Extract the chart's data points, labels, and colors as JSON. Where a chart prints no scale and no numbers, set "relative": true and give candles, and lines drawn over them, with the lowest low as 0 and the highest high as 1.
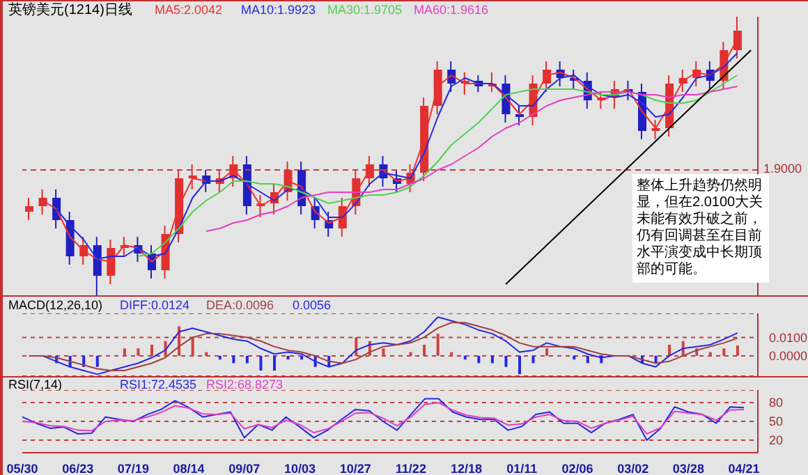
{
  "chart_data": [
    {
      "type": "candlestick",
      "title": "英镑美元(1214)日线",
      "relative": true,
      "legend": "top",
      "tick_labels": false,
      "categories": [
        null,
        null,
        null,
        null,
        null,
        null,
        null,
        null,
        null,
        null,
        null,
        null,
        null,
        null,
        null,
        null,
        null,
        null,
        null,
        null,
        null,
        null,
        null,
        null,
        null,
        null,
        null,
        null,
        null,
        null,
        null,
        null,
        null,
        null,
        null,
        null,
        null,
        null,
        null,
        null,
        null,
        null,
        null,
        null,
        null,
        null,
        null,
        null,
        null,
        null,
        null,
        null,
        null,
        null
      ],
      "ohlc": [
        [
          0.3,
          0.35,
          0.27,
          0.32
        ],
        [
          0.32,
          0.38,
          0.29,
          0.35
        ],
        [
          0.35,
          0.38,
          0.24,
          0.27
        ],
        [
          0.27,
          0.3,
          0.11,
          0.14
        ],
        [
          0.14,
          0.21,
          0.11,
          0.18
        ],
        [
          0.18,
          0.21,
          0.0,
          0.07
        ],
        [
          0.07,
          0.2,
          0.04,
          0.17
        ],
        [
          0.17,
          0.21,
          0.14,
          0.18
        ],
        [
          0.18,
          0.21,
          0.12,
          0.15
        ],
        [
          0.15,
          0.18,
          0.06,
          0.09
        ],
        [
          0.09,
          0.25,
          0.06,
          0.22
        ],
        [
          0.22,
          0.45,
          0.19,
          0.42
        ],
        [
          0.42,
          0.47,
          0.38,
          0.43
        ],
        [
          0.43,
          0.45,
          0.37,
          0.4
        ],
        [
          0.4,
          0.45,
          0.37,
          0.42
        ],
        [
          0.42,
          0.5,
          0.39,
          0.47
        ],
        [
          0.47,
          0.5,
          0.29,
          0.32
        ],
        [
          0.32,
          0.36,
          0.28,
          0.33
        ],
        [
          0.33,
          0.4,
          0.29,
          0.37
        ],
        [
          0.37,
          0.48,
          0.34,
          0.45
        ],
        [
          0.45,
          0.48,
          0.29,
          0.32
        ],
        [
          0.32,
          0.35,
          0.24,
          0.27
        ],
        [
          0.27,
          0.3,
          0.21,
          0.24
        ],
        [
          0.24,
          0.35,
          0.21,
          0.32
        ],
        [
          0.32,
          0.45,
          0.29,
          0.42
        ],
        [
          0.42,
          0.5,
          0.39,
          0.47
        ],
        [
          0.47,
          0.5,
          0.39,
          0.42
        ],
        [
          0.42,
          0.45,
          0.37,
          0.4
        ],
        [
          0.4,
          0.47,
          0.37,
          0.44
        ],
        [
          0.44,
          0.71,
          0.41,
          0.68
        ],
        [
          0.68,
          0.84,
          0.65,
          0.81
        ],
        [
          0.81,
          0.84,
          0.73,
          0.76
        ],
        [
          0.76,
          0.8,
          0.72,
          0.77
        ],
        [
          0.77,
          0.79,
          0.73,
          0.75
        ],
        [
          0.75,
          0.8,
          0.73,
          0.76
        ],
        [
          0.76,
          0.79,
          0.62,
          0.65
        ],
        [
          0.65,
          0.68,
          0.61,
          0.64
        ],
        [
          0.64,
          0.79,
          0.61,
          0.76
        ],
        [
          0.76,
          0.84,
          0.73,
          0.81
        ],
        [
          0.81,
          0.84,
          0.75,
          0.78
        ],
        [
          0.78,
          0.81,
          0.74,
          0.77
        ],
        [
          0.77,
          0.8,
          0.67,
          0.7
        ],
        [
          0.7,
          0.73,
          0.67,
          0.71
        ],
        [
          0.71,
          0.77,
          0.67,
          0.74
        ],
        [
          0.74,
          0.77,
          0.7,
          0.73
        ],
        [
          0.73,
          0.76,
          0.56,
          0.59
        ],
        [
          0.59,
          0.63,
          0.56,
          0.6
        ],
        [
          0.6,
          0.79,
          0.57,
          0.76
        ],
        [
          0.76,
          0.81,
          0.73,
          0.78
        ],
        [
          0.78,
          0.84,
          0.75,
          0.81
        ],
        [
          0.81,
          0.84,
          0.74,
          0.77
        ],
        [
          0.77,
          0.91,
          0.74,
          0.88
        ],
        [
          0.88,
          1.0,
          0.85,
          0.95
        ],
        null
      ],
      "colors": [
        "#e03030",
        "#e03030",
        "#2020c0",
        "#2020c0",
        "#e03030",
        "#2020c0",
        "#e03030",
        "#e03030",
        "#2020c0",
        "#2020c0",
        "#e03030",
        "#e03030",
        "#e03030",
        "#2020c0",
        "#e03030",
        "#e03030",
        "#2020c0",
        "#e03030",
        "#e03030",
        "#e03030",
        "#2020c0",
        "#2020c0",
        "#2020c0",
        "#e03030",
        "#e03030",
        "#e03030",
        "#2020c0",
        "#2020c0",
        "#e03030",
        "#e03030",
        "#e03030",
        "#2020c0",
        "#e03030",
        "#2020c0",
        "#e03030",
        "#2020c0",
        "#2020c0",
        "#e03030",
        "#e03030",
        "#2020c0",
        "#2020c0",
        "#2020c0",
        "#e03030",
        "#e03030",
        "#2020c0",
        "#2020c0",
        "#e03030",
        "#e03030",
        "#e03030",
        "#e03030",
        "#2020c0",
        "#e03030",
        "#e03030",
        null
      ],
      "series": [
        {
          "name": "MA5:2.0042",
          "type": "line",
          "color": "#f03030",
          "values": [
            null,
            0.34,
            0.31,
            0.21,
            0.16,
            0.13,
            0.12,
            0.18,
            0.17,
            0.12,
            0.16,
            0.32,
            0.42,
            0.41,
            0.41,
            0.45,
            0.4,
            0.32,
            0.35,
            0.41,
            0.39,
            0.3,
            0.26,
            0.28,
            0.37,
            0.45,
            0.45,
            0.41,
            0.42,
            0.56,
            0.75,
            0.79,
            0.76,
            0.76,
            0.76,
            0.71,
            0.65,
            0.7,
            0.79,
            0.8,
            0.78,
            0.74,
            0.7,
            0.72,
            0.74,
            0.66,
            0.6,
            0.68,
            0.77,
            0.8,
            0.79,
            0.83,
            0.92,
            null
          ]
        },
        {
          "name": "MA10:1.9923",
          "type": "line",
          "color": "#2828e0",
          "values": [
            null,
            null,
            0.31,
            0.25,
            0.2,
            0.13,
            0.14,
            0.14,
            0.17,
            0.14,
            0.15,
            0.24,
            0.35,
            0.41,
            0.41,
            0.43,
            0.4,
            0.37,
            0.34,
            0.38,
            0.38,
            0.35,
            0.28,
            0.28,
            0.33,
            0.4,
            0.44,
            0.43,
            0.42,
            0.51,
            0.64,
            0.75,
            0.78,
            0.76,
            0.76,
            0.72,
            0.68,
            0.68,
            0.74,
            0.78,
            0.79,
            0.75,
            0.72,
            0.71,
            0.72,
            0.69,
            0.64,
            0.65,
            0.71,
            0.78,
            0.79,
            0.82,
            0.87,
            null
          ]
        },
        {
          "name": "MA30:1.9705",
          "type": "line",
          "color": "#50d050",
          "values": [
            null,
            null,
            null,
            null,
            null,
            null,
            null,
            null,
            0.14,
            0.15,
            0.19,
            0.24,
            0.3,
            0.34,
            0.37,
            0.41,
            0.41,
            0.4,
            0.4,
            0.39,
            0.37,
            0.35,
            0.33,
            0.34,
            0.35,
            0.36,
            0.36,
            0.37,
            0.39,
            0.43,
            0.48,
            0.54,
            0.58,
            0.62,
            0.67,
            0.72,
            0.73,
            0.74,
            0.74,
            0.74,
            0.74,
            0.73,
            0.72,
            0.72,
            0.73,
            0.72,
            0.7,
            0.69,
            0.69,
            0.7,
            0.73,
            0.76,
            0.79,
            null
          ]
        },
        {
          "name": "MA60:1.9616",
          "type": "line",
          "color": "#e040c0",
          "values": [
            null,
            null,
            null,
            null,
            null,
            null,
            null,
            null,
            null,
            null,
            null,
            null,
            null,
            0.23,
            0.24,
            0.26,
            0.27,
            0.29,
            0.3,
            0.32,
            0.35,
            0.36,
            0.37,
            0.37,
            0.37,
            0.37,
            0.38,
            0.38,
            0.4,
            0.42,
            0.45,
            0.47,
            0.5,
            0.53,
            0.57,
            0.6,
            0.62,
            0.65,
            0.68,
            0.7,
            0.71,
            0.72,
            0.73,
            0.73,
            0.73,
            0.72,
            0.72,
            0.71,
            0.72,
            0.72,
            0.73,
            0.74,
            0.75,
            null
          ]
        },
        {
          "type": "line",
          "color": "#000000",
          "values": [
            null,
            null,
            null,
            null,
            null,
            null,
            null,
            null,
            null,
            null,
            null,
            null,
            null,
            null,
            null,
            null,
            null,
            null,
            null,
            null,
            null,
            null,
            null,
            null,
            null,
            null,
            null,
            null,
            null,
            null,
            null,
            null,
            null,
            null,
            null,
            0.04,
            null,
            null,
            null,
            null,
            null,
            null,
            null,
            null,
            null,
            null,
            null,
            null,
            null,
            null,
            null,
            null,
            null,
            0.88
          ]
        }
      ],
      "ref_lines": [
        {
          "axis": "y",
          "value": 0.45,
          "color": "#c04040",
          "line_style": "dashed"
        }
      ],
      "annotations": [
        "1.9000",
        "整体上升趋势仍然明显，但在2.0100大关未能有效升破之前，仍有回调甚至在目前水平演变成中长期顶部的可能。"
      ]
    },
    {
      "type": "line",
      "title": "MACD(12,26,10)",
      "legend": "top left",
      "tick_labels": "y",
      "grid": "y",
      "categories": [
        null,
        null,
        null,
        null,
        null,
        null,
        null,
        null,
        null,
        null,
        null,
        null,
        null,
        null,
        null,
        null,
        null,
        null,
        null,
        null,
        null,
        null,
        null,
        null,
        null,
        null,
        null,
        null,
        null,
        null,
        null,
        null,
        null,
        null,
        null,
        null,
        null,
        null,
        null,
        null,
        null,
        null,
        null,
        null,
        null,
        null,
        null,
        null,
        null,
        null,
        null,
        null,
        null,
        null
      ],
      "ylim": [
        -0.011,
        0.023
      ],
      "yticks": [
        {
          "value": 0,
          "label": "0.0000"
        },
        {
          "value": 0.01,
          "label": "0.0100"
        }
      ],
      "series": [
        {
          "name": "DIFF:0.0124",
          "type": "line",
          "color": "#2828e0",
          "values": [
            0,
            0,
            -0.003,
            -0.006,
            -0.008,
            -0.01,
            -0.008,
            -0.006,
            -0.004,
            -0.001,
            0.003,
            0.013,
            0.015,
            0.013,
            0.011,
            0.009,
            0.008,
            0.004,
            0.001,
            0.002,
            0.001,
            -0.003,
            -0.006,
            -0.004,
            0.003,
            0.006,
            0.007,
            0.006,
            0.008,
            0.013,
            0.021,
            0.019,
            0.017,
            0.014,
            0.012,
            0.008,
            0.002,
            0.003,
            0.007,
            0.005,
            0.004,
            0.001,
            -0.001,
            0,
            0,
            -0.004,
            -0.006,
            0,
            0.004,
            0.005,
            0.006,
            0.009,
            0.0124,
            null
          ]
        },
        {
          "name": "DEA:0.0096",
          "type": "line",
          "color": "#a04040",
          "values": [
            0,
            0,
            -0.001,
            -0.003,
            -0.005,
            -0.007,
            -0.008,
            -0.008,
            -0.006,
            -0.004,
            -0.001,
            0.005,
            0.01,
            0.012,
            0.012,
            0.011,
            0.01,
            0.008,
            0.005,
            0.003,
            0.002,
            0,
            -0.003,
            -0.004,
            -0.002,
            0.002,
            0.005,
            0.006,
            0.007,
            0.01,
            0.015,
            0.018,
            0.018,
            0.016,
            0.014,
            0.011,
            0.007,
            0.005,
            0.005,
            0.005,
            0.005,
            0.003,
            0.001,
            0,
            0,
            -0.002,
            -0.004,
            -0.003,
            0,
            0.003,
            0.005,
            0.007,
            0.0096,
            null
          ]
        },
        {
          "name": "0.0056",
          "type": "bar",
          "color": "#2828e0",
          "values": [
            0,
            0,
            -0.004,
            -0.006,
            -0.006,
            -0.006,
            0,
            0.004,
            0.004,
            0.006,
            0.008,
            0.016,
            0.01,
            0.002,
            -0.002,
            -0.004,
            -0.004,
            -0.008,
            -0.008,
            -0.002,
            -0.002,
            -0.006,
            -0.006,
            0,
            0.01,
            0.008,
            0.004,
            0,
            0.002,
            0.006,
            0.012,
            0.002,
            -0.002,
            -0.004,
            -0.004,
            -0.006,
            -0.01,
            -0.004,
            0.004,
            0,
            -0.002,
            -0.004,
            -0.004,
            0,
            0,
            -0.004,
            -0.004,
            0.006,
            0.008,
            0.004,
            0.002,
            0.004,
            0.0056,
            null
          ],
          "colors": [
            "#d04040",
            "#d04040",
            "#2828e0",
            "#2828e0",
            "#2828e0",
            "#2828e0",
            "#d04040",
            "#d04040",
            "#d04040",
            "#d04040",
            "#d04040",
            "#d04040",
            "#d04040",
            "#d04040",
            "#2828e0",
            "#2828e0",
            "#2828e0",
            "#2828e0",
            "#2828e0",
            "#2828e0",
            "#2828e0",
            "#2828e0",
            "#2828e0",
            "#d04040",
            "#d04040",
            "#d04040",
            "#d04040",
            "#d04040",
            "#d04040",
            "#d04040",
            "#d04040",
            "#d04040",
            "#2828e0",
            "#2828e0",
            "#2828e0",
            "#2828e0",
            "#2828e0",
            "#2828e0",
            "#d04040",
            "#d04040",
            "#2828e0",
            "#2828e0",
            "#2828e0",
            "#d04040",
            "#d04040",
            "#2828e0",
            "#2828e0",
            "#d04040",
            "#d04040",
            "#d04040",
            "#d04040",
            "#d04040",
            "#d04040",
            null
          ]
        }
      ]
    },
    {
      "type": "line",
      "title": "RSI(7,14)",
      "legend": "top left",
      "grid": "y",
      "categories": [
        "05/30",
        null,
        null,
        null,
        "06/23",
        null,
        null,
        null,
        "07/19",
        null,
        null,
        null,
        "08/14",
        null,
        null,
        null,
        "09/07",
        null,
        null,
        null,
        "10/03",
        null,
        null,
        null,
        "10/27",
        null,
        null,
        null,
        "11/22",
        null,
        null,
        null,
        "12/18",
        null,
        null,
        null,
        "01/11",
        null,
        null,
        null,
        "02/06",
        null,
        null,
        null,
        "03/02",
        null,
        null,
        null,
        "03/28",
        null,
        null,
        null,
        "04/21",
        null
      ],
      "ylim": [
        0,
        100
      ],
      "yticks": [
        20,
        50,
        80
      ],
      "series": [
        {
          "name": "RSI1:72.4535",
          "type": "line",
          "color": "#2828e0",
          "values": [
            57,
            47,
            39,
            41,
            30,
            31,
            57,
            53,
            50,
            61,
            69,
            83,
            72,
            57,
            61,
            65,
            24,
            45,
            36,
            57,
            41,
            24,
            36,
            53,
            69,
            67,
            50,
            36,
            61,
            86,
            86,
            65,
            57,
            53,
            53,
            36,
            42,
            61,
            65,
            47,
            47,
            32,
            47,
            53,
            61,
            20,
            39,
            73,
            65,
            61,
            47,
            73,
            72,
            null
          ]
        },
        {
          "name": "RSI2:68.8273",
          "type": "line",
          "color": "#e040c0",
          "values": [
            50,
            48,
            43,
            42,
            36,
            35,
            50,
            52,
            51,
            57,
            64,
            75,
            71,
            62,
            61,
            63,
            38,
            45,
            40,
            52,
            45,
            32,
            38,
            50,
            63,
            64,
            55,
            43,
            57,
            77,
            80,
            68,
            60,
            56,
            55,
            44,
            46,
            57,
            61,
            51,
            50,
            39,
            47,
            52,
            58,
            30,
            40,
            66,
            63,
            61,
            52,
            68,
            69,
            null
          ]
        }
      ]
    }
  ]
}
